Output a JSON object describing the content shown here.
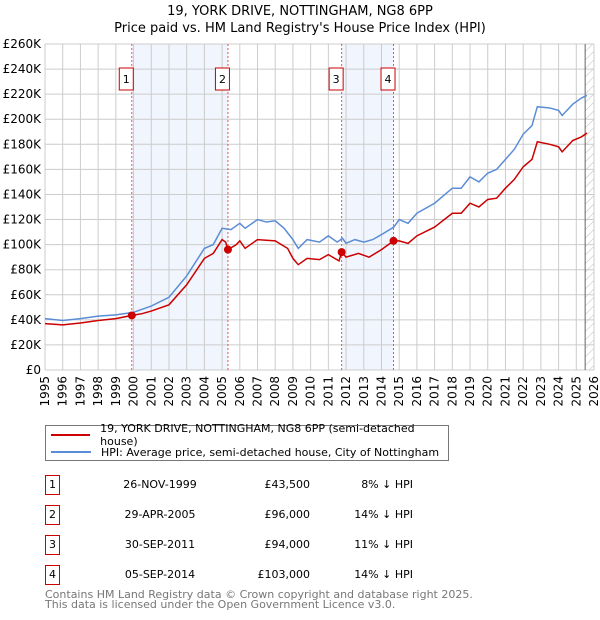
{
  "chart_data": {
    "type": "line",
    "title": "19, YORK DRIVE, NOTTINGHAM, NG8 6PP",
    "subtitle": "Price paid vs. HM Land Registry's House Price Index (HPI)",
    "xlabel": "",
    "ylabel": "",
    "xlim": [
      1995,
      2026
    ],
    "ylim": [
      0,
      260000
    ],
    "y_ticks": [
      "£0",
      "£20K",
      "£40K",
      "£60K",
      "£80K",
      "£100K",
      "£120K",
      "£140K",
      "£160K",
      "£180K",
      "£200K",
      "£220K",
      "£240K",
      "£260K"
    ],
    "x_ticks": [
      "1995",
      "1996",
      "1997",
      "1998",
      "1999",
      "2000",
      "2001",
      "2002",
      "2003",
      "2004",
      "2005",
      "2006",
      "2007",
      "2008",
      "2009",
      "2010",
      "2011",
      "2012",
      "2013",
      "2014",
      "2015",
      "2016",
      "2017",
      "2018",
      "2019",
      "2020",
      "2021",
      "2022",
      "2023",
      "2024",
      "2025",
      "2026"
    ],
    "grid": true,
    "series": [
      {
        "name": "19, YORK DRIVE, NOTTINGHAM, NG8 6PP (semi-detached house)",
        "color": "#cc0000",
        "x": [
          1995,
          1996,
          1997,
          1998,
          1999,
          1999.9,
          2000.5,
          2001,
          2002,
          2003,
          2004,
          2004.5,
          2005,
          2005.2,
          2005.33,
          2005.8,
          2006,
          2006.3,
          2007,
          2008,
          2008.7,
          2009,
          2009.3,
          2009.8,
          2010.5,
          2011,
          2011.6,
          2011.75,
          2012,
          2012.7,
          2013.3,
          2014,
          2014.68,
          2015,
          2015.5,
          2016,
          2017,
          2018,
          2018.5,
          2019,
          2019.5,
          2020,
          2020.5,
          2021,
          2021.5,
          2022,
          2022.5,
          2022.8,
          2023.5,
          2024,
          2024.2,
          2024.8,
          2025.3,
          2025.6
        ],
        "y": [
          37000,
          36000,
          37500,
          39500,
          41000,
          43500,
          45000,
          47000,
          52000,
          68000,
          89000,
          93000,
          104000,
          102000,
          96000,
          100000,
          103000,
          97000,
          104000,
          103000,
          97000,
          89000,
          84000,
          89000,
          88000,
          92000,
          87000,
          94000,
          90000,
          93000,
          90000,
          96000,
          103000,
          103000,
          101000,
          107000,
          114000,
          125000,
          125000,
          133000,
          130000,
          136000,
          137000,
          145000,
          152000,
          162000,
          168000,
          182000,
          180000,
          178000,
          174000,
          183000,
          186000,
          189000
        ]
      },
      {
        "name": "HPI: Average price, semi-detached house, City of Nottingham",
        "color": "#5b8dd6",
        "x": [
          1995,
          1996,
          1997,
          1998,
          1999,
          2000,
          2001,
          2002,
          2003,
          2004,
          2004.5,
          2005,
          2005.5,
          2006,
          2006.3,
          2007,
          2007.5,
          2008,
          2008.5,
          2009,
          2009.3,
          2009.8,
          2010.5,
          2011,
          2011.5,
          2011.8,
          2012,
          2012.5,
          2013,
          2013.5,
          2014,
          2014.7,
          2015,
          2015.5,
          2016,
          2017,
          2018,
          2018.5,
          2019,
          2019.5,
          2020,
          2020.5,
          2021,
          2021.5,
          2022,
          2022.5,
          2022.8,
          2023.5,
          2024,
          2024.2,
          2024.8,
          2025.3,
          2025.6
        ],
        "y": [
          41000,
          39500,
          41000,
          43000,
          44000,
          46000,
          51000,
          58000,
          75000,
          97000,
          100000,
          113000,
          112000,
          117000,
          113000,
          120000,
          118000,
          119000,
          113000,
          104000,
          97000,
          104000,
          102000,
          107000,
          102000,
          105000,
          101000,
          104000,
          102000,
          104000,
          108000,
          114000,
          120000,
          117000,
          125000,
          133000,
          145000,
          145000,
          154000,
          150000,
          157000,
          160000,
          168000,
          176000,
          188000,
          195000,
          210000,
          209000,
          207000,
          203000,
          212000,
          217000,
          219000
        ]
      }
    ],
    "transactions": [
      {
        "id": "1",
        "x": 1999.9,
        "date": "26-NOV-1999",
        "price_label": "£43,500",
        "price": 43500,
        "hpi": "8% ↓ HPI"
      },
      {
        "id": "2",
        "x": 2005.33,
        "date": "29-APR-2005",
        "price_label": "£96,000",
        "price": 96000,
        "hpi": "14% ↓ HPI"
      },
      {
        "id": "3",
        "x": 2011.75,
        "date": "30-SEP-2011",
        "price_label": "£94,000",
        "price": 94000,
        "hpi": "11% ↓ HPI"
      },
      {
        "id": "4",
        "x": 2014.68,
        "date": "05-SEP-2014",
        "price_label": "£103,000",
        "price": 103000,
        "hpi": "14% ↓ HPI"
      }
    ],
    "shaded_ranges": [
      [
        1999.9,
        2005.33
      ],
      [
        2011.75,
        2014.68
      ]
    ],
    "forecast_from": 2025.5,
    "legend_placement": "below"
  },
  "footer": {
    "line1": "Contains HM Land Registry data © Crown copyright and database right 2025.",
    "line2": "This data is licensed under the Open Government Licence v3.0."
  }
}
